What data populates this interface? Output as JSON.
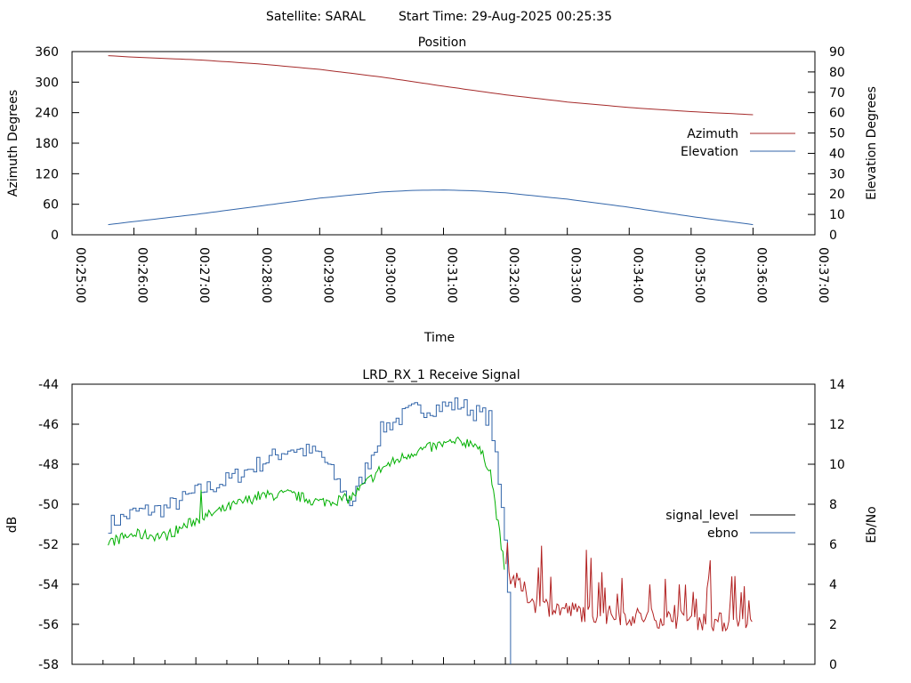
{
  "header": {
    "satellite": "Satellite: SARAL",
    "start_time": "Start Time: 29-Aug-2025 00:25:35"
  },
  "colors": {
    "azimuth": "#a52a2a",
    "elevation": "#3366aa",
    "signal_level_legend": "#000000",
    "ebno": "#3366aa",
    "signal_green": "#00b000",
    "signal_red": "#b22222"
  },
  "chart_data": [
    {
      "type": "line",
      "title": "Position",
      "xlabel": "Time",
      "ylabel": "Azimuth Degrees",
      "y2label": "Elevation Degrees",
      "ylim": [
        0,
        360
      ],
      "y2lim": [
        0,
        90
      ],
      "yticks": [
        "360",
        "300",
        "240",
        "180",
        "120",
        "60",
        "0"
      ],
      "y2ticks": [
        "90",
        "80",
        "70",
        "60",
        "50",
        "40",
        "30",
        "20",
        "10",
        "0"
      ],
      "xlim": [
        "00:25:00",
        "00:37:00"
      ],
      "xticks": [
        "00:25:00",
        "00:26:00",
        "00:27:00",
        "00:28:00",
        "00:29:00",
        "00:30:00",
        "00:31:00",
        "00:32:00",
        "00:33:00",
        "00:34:00",
        "00:35:00",
        "00:36:00",
        "00:37:00"
      ],
      "legend_position": "right",
      "series": [
        {
          "name": "Azimuth",
          "axis": "left",
          "x": [
            "00:25:35",
            "00:26:00",
            "00:27:00",
            "00:28:00",
            "00:29:00",
            "00:30:00",
            "00:31:00",
            "00:32:00",
            "00:33:00",
            "00:34:00",
            "00:35:00",
            "00:36:00"
          ],
          "values": [
            352,
            349,
            344,
            336,
            325,
            310,
            292,
            275,
            261,
            250,
            242,
            236
          ]
        },
        {
          "name": "Elevation",
          "axis": "right",
          "x": [
            "00:25:35",
            "00:26:00",
            "00:27:00",
            "00:28:00",
            "00:29:00",
            "00:30:00",
            "00:30:30",
            "00:31:00",
            "00:31:30",
            "00:32:00",
            "00:33:00",
            "00:34:00",
            "00:35:00",
            "00:36:00"
          ],
          "values": [
            5,
            6.5,
            10,
            14,
            18,
            21,
            21.8,
            22,
            21.6,
            20.6,
            17.5,
            13.5,
            9,
            5
          ]
        }
      ]
    },
    {
      "type": "line",
      "title": "LRD_RX_1 Receive Signal",
      "xlabel": "",
      "ylabel": "dB",
      "y2label": "Eb/No",
      "ylim": [
        -58,
        -44
      ],
      "y2lim": [
        0,
        14
      ],
      "yticks": [
        "-44",
        "-46",
        "-48",
        "-50",
        "-52",
        "-54",
        "-56",
        "-58"
      ],
      "y2ticks": [
        "14",
        "12",
        "10",
        "8",
        "6",
        "4",
        "2",
        "0"
      ],
      "xlim": [
        "00:25:00",
        "00:37:00"
      ],
      "legend_position": "right",
      "series": [
        {
          "name": "signal_level",
          "axis": "left",
          "x": [
            "00:25:35",
            "00:26:00",
            "00:26:30",
            "00:27:00",
            "00:27:30",
            "00:28:00",
            "00:28:30",
            "00:29:00",
            "00:29:30",
            "00:30:00",
            "00:30:30",
            "00:31:00",
            "00:31:15",
            "00:31:30",
            "00:31:45",
            "00:32:00",
            "00:32:30",
            "00:33:00",
            "00:33:30",
            "00:34:00",
            "00:34:30",
            "00:35:00",
            "00:35:30",
            "00:36:00"
          ],
          "values": [
            -51.9,
            -51.5,
            -51.6,
            -50.8,
            -50.2,
            -49.6,
            -49.5,
            -49.9,
            -49.7,
            -48.2,
            -47.4,
            -47.0,
            -46.9,
            -46.9,
            -48.2,
            -53.5,
            -55.2,
            -55.5,
            -55.7,
            -55.8,
            -55.9,
            -56.0,
            -56.1,
            -56.4
          ]
        },
        {
          "name": "ebno",
          "axis": "right",
          "x": [
            "00:25:35",
            "00:26:00",
            "00:26:30",
            "00:27:00",
            "00:27:30",
            "00:28:00",
            "00:28:30",
            "00:29:00",
            "00:29:30",
            "00:30:00",
            "00:30:30",
            "00:31:00",
            "00:31:15",
            "00:31:30",
            "00:31:45",
            "00:32:00",
            "00:32:05"
          ],
          "values": [
            7.0,
            7.6,
            7.8,
            8.6,
            9.2,
            10.0,
            10.8,
            10.5,
            8.0,
            11.8,
            12.7,
            12.9,
            13.0,
            12.6,
            12.3,
            6.0,
            0
          ]
        }
      ]
    }
  ]
}
